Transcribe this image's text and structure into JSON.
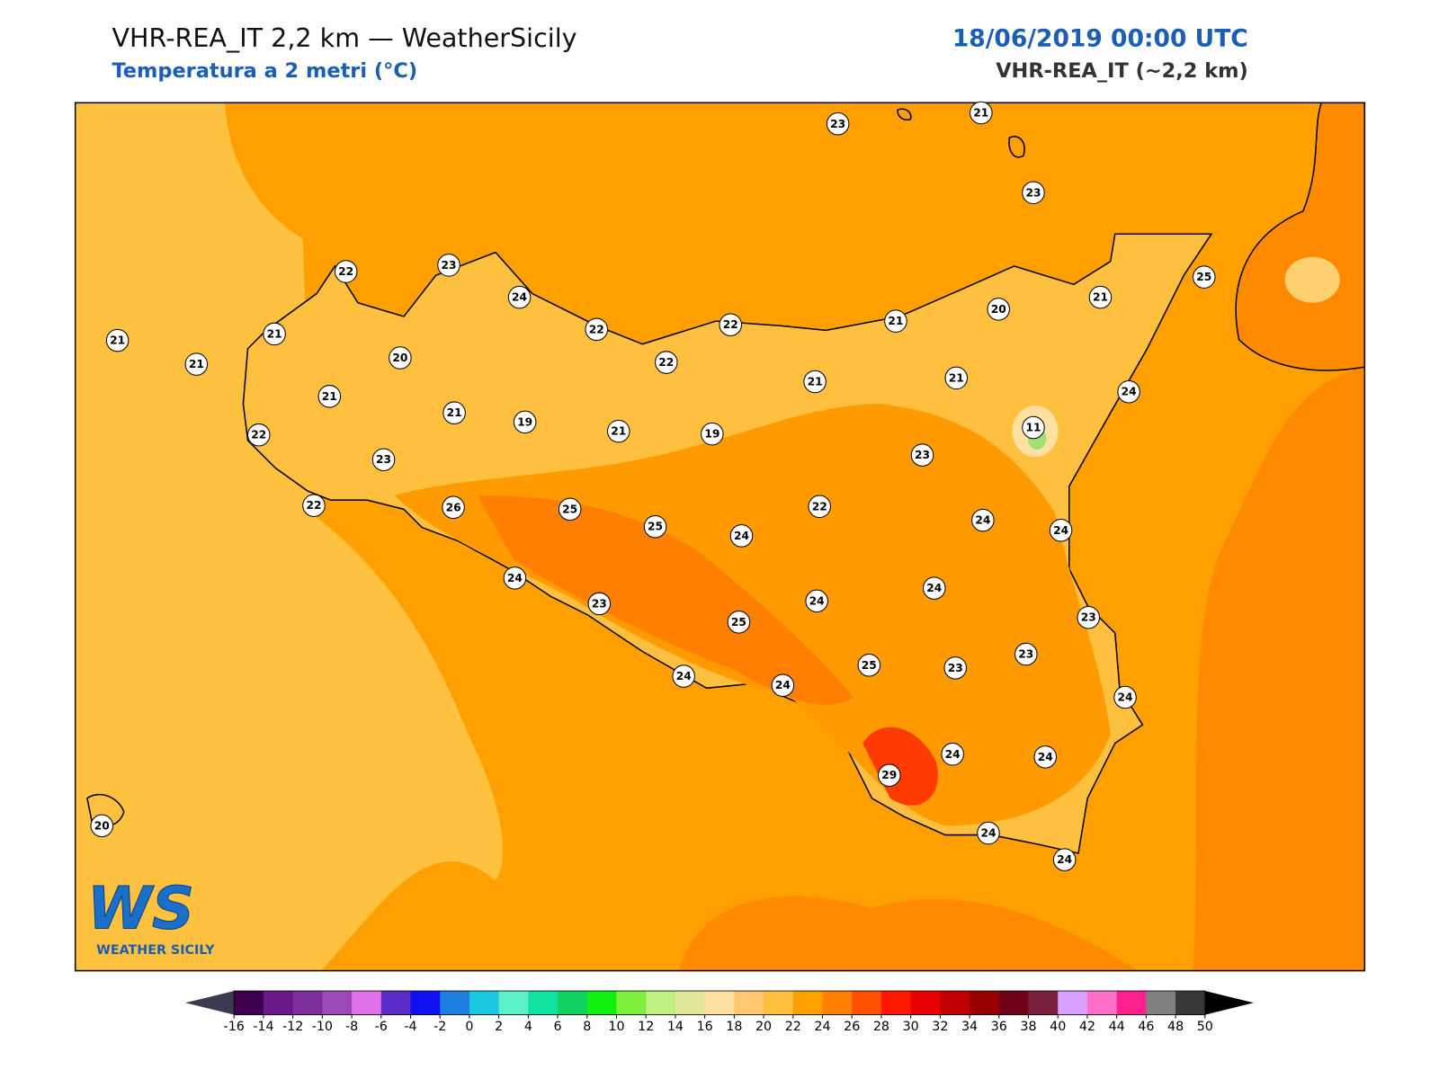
{
  "header": {
    "title": "VHR-REA_IT 2,2 km — WeatherSicily",
    "subtitle": "Temperatura a 2 metri (°C)",
    "datetime": "18/06/2019 00:00 UTC",
    "model": "VHR-REA_IT (~2,2 km)"
  },
  "stations": [
    23,
    21,
    23,
    22,
    23,
    24,
    22,
    22,
    21,
    20,
    21,
    25,
    21,
    21,
    21,
    20,
    22,
    21,
    21,
    24,
    21,
    21,
    19,
    21,
    19,
    11,
    22,
    23,
    23,
    22,
    26,
    25,
    25,
    24,
    22,
    24,
    24,
    24,
    23,
    24,
    24,
    25,
    23,
    23,
    25,
    23,
    24,
    24,
    24,
    24,
    24,
    29,
    24,
    24,
    20
  ],
  "colorbar": {
    "ticks": [
      -16,
      -14,
      -12,
      -10,
      -8,
      -6,
      -4,
      -2,
      0,
      2,
      4,
      6,
      8,
      10,
      12,
      14,
      16,
      18,
      20,
      22,
      24,
      26,
      28,
      30,
      32,
      34,
      36,
      38,
      40,
      42,
      44,
      46,
      48,
      50
    ],
    "colors": [
      "#400050",
      "#6a1a8a",
      "#7e2f9e",
      "#9b4ab5",
      "#e070e8",
      "#5a2bc7",
      "#1010f0",
      "#1e7ee0",
      "#1ec8e0",
      "#5cf0c8",
      "#10e0a0",
      "#10d060",
      "#10f010",
      "#80f040",
      "#c0f080",
      "#e0e898",
      "#ffe0a0",
      "#ffc870",
      "#ffc040",
      "#ffa000",
      "#ff8000",
      "#ff5000",
      "#ff1800",
      "#e80000",
      "#c00000",
      "#980000",
      "#700018",
      "#7c2040",
      "#d8a0ff",
      "#ff70c8",
      "#ff2090",
      "#808080",
      "#383838"
    ],
    "under_color": "#3a3a50",
    "over_color": "#000000"
  },
  "logo": {
    "initials": "WS",
    "name": "WEATHER SICILY"
  }
}
